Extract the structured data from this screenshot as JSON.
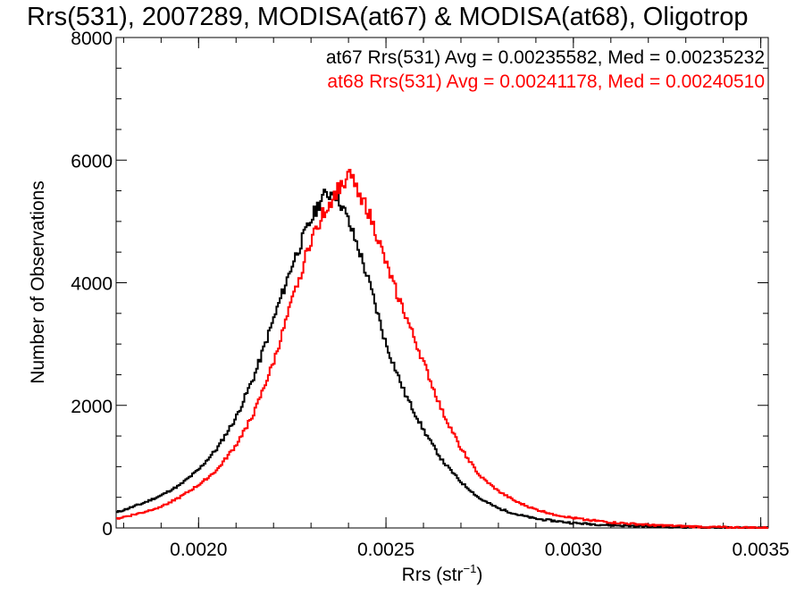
{
  "chart_data": {
    "type": "line",
    "title": "Rrs(531), 2007289, MODISA(at67) & MODISA(at68), Oligotrop",
    "xlabel": "Rrs (str",
    "xlabel_sup": "−1",
    "xlabel_close": ")",
    "ylabel": "Number of Observations",
    "xlim": [
      0.00178,
      0.00352
    ],
    "ylim": [
      0,
      8000
    ],
    "x_ticks": [
      0.002,
      0.0025,
      0.003,
      0.0035
    ],
    "x_tick_labels": [
      "0.0020",
      "0.0025",
      "0.0030",
      "0.0035"
    ],
    "y_ticks": [
      0,
      2000,
      4000,
      6000,
      8000
    ],
    "y_tick_labels": [
      "0",
      "2000",
      "4000",
      "6000",
      "8000"
    ],
    "grid": false,
    "legend_placement": "top-right",
    "annotations": [
      {
        "text": "at67 Rrs(531) Avg = 0.00235582, Med = 0.00235232",
        "color": "#000000"
      },
      {
        "text": "at68 Rrs(531) Avg = 0.00241178, Med = 0.00240510",
        "color": "#ff0000"
      }
    ],
    "series": [
      {
        "color": "#000000",
        "x": [
          0.00178,
          0.00185,
          0.0019,
          0.00195,
          0.002,
          0.00205,
          0.0021,
          0.00215,
          0.0022,
          0.00225,
          0.00228,
          0.00231,
          0.00233,
          0.00235,
          0.00236,
          0.00238,
          0.0024,
          0.00243,
          0.00246,
          0.0025,
          0.00255,
          0.0026,
          0.00265,
          0.0027,
          0.00275,
          0.0028,
          0.00285,
          0.0029,
          0.003,
          0.0031,
          0.0032,
          0.0033,
          0.0034,
          0.00352
        ],
        "y": [
          250,
          400,
          530,
          700,
          950,
          1300,
          1800,
          2500,
          3400,
          4300,
          4750,
          5150,
          5400,
          5450,
          5500,
          5300,
          5000,
          4500,
          3900,
          3000,
          2200,
          1600,
          1100,
          750,
          480,
          320,
          220,
          150,
          80,
          45,
          25,
          12,
          5,
          0
        ]
      },
      {
        "color": "#ff0000",
        "x": [
          0.00178,
          0.00185,
          0.0019,
          0.00195,
          0.002,
          0.00205,
          0.0021,
          0.00215,
          0.0022,
          0.00225,
          0.0023,
          0.00233,
          0.00236,
          0.00238,
          0.0024,
          0.00242,
          0.00245,
          0.00248,
          0.0025,
          0.00255,
          0.0026,
          0.00265,
          0.0027,
          0.00275,
          0.0028,
          0.00285,
          0.0029,
          0.00295,
          0.003,
          0.0031,
          0.0032,
          0.0033,
          0.0034,
          0.00352
        ],
        "y": [
          150,
          250,
          350,
          500,
          700,
          950,
          1350,
          1900,
          2700,
          3700,
          4700,
          5100,
          5400,
          5600,
          5750,
          5600,
          5200,
          4700,
          4300,
          3500,
          2700,
          1900,
          1300,
          850,
          600,
          420,
          300,
          220,
          160,
          90,
          50,
          25,
          10,
          0
        ]
      }
    ]
  }
}
